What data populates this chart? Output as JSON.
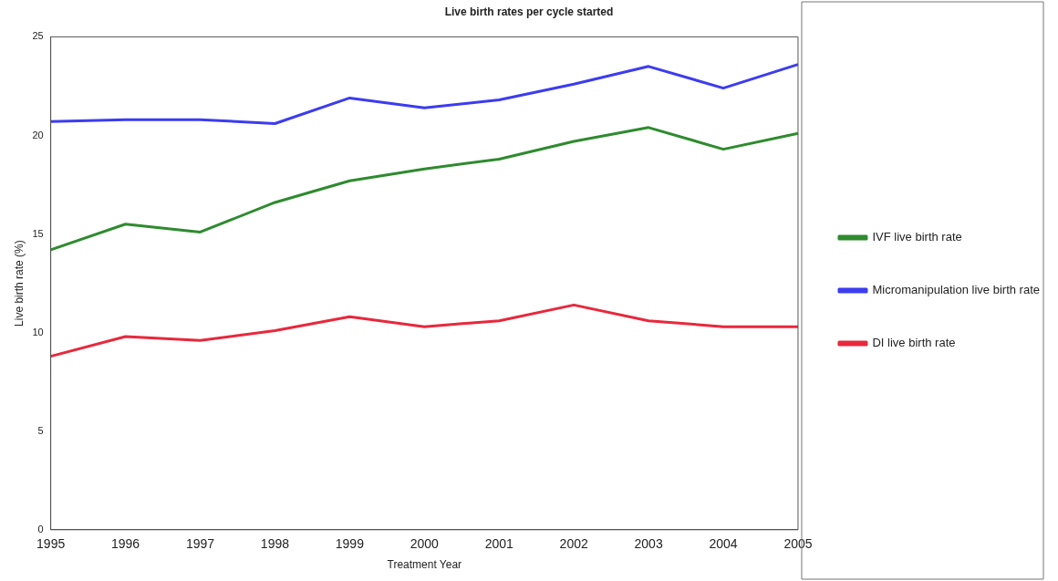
{
  "chart_data": {
    "type": "line",
    "title": "Live birth rates per cycle started",
    "xlabel": "Treatment Year",
    "ylabel": "Live birth rate (%)",
    "categories": [
      "1995",
      "1996",
      "1997",
      "1998",
      "1999",
      "2000",
      "2001",
      "2002",
      "2003",
      "2004",
      "2005"
    ],
    "series": [
      {
        "name": "IVF live birth rate",
        "color": "#2e8b2e",
        "values": [
          14.2,
          15.5,
          15.1,
          16.6,
          17.7,
          18.3,
          18.8,
          19.7,
          20.4,
          19.3,
          20.1
        ]
      },
      {
        "name": "Micromanipulation live birth rate",
        "color": "#3c3cf0",
        "values": [
          20.7,
          20.8,
          20.8,
          20.6,
          21.9,
          21.4,
          21.8,
          22.6,
          23.5,
          22.4,
          23.6
        ]
      },
      {
        "name": "DI live birth rate",
        "color": "#e8283c",
        "values": [
          8.8,
          9.8,
          9.6,
          10.1,
          10.8,
          10.3,
          10.6,
          11.4,
          10.6,
          10.3,
          10.3
        ]
      }
    ],
    "ylim": [
      0,
      25
    ],
    "yticks": [
      0,
      5,
      10,
      15,
      20,
      25
    ],
    "grid": false,
    "legend": "right",
    "marker": "none",
    "line_style": "solid"
  }
}
